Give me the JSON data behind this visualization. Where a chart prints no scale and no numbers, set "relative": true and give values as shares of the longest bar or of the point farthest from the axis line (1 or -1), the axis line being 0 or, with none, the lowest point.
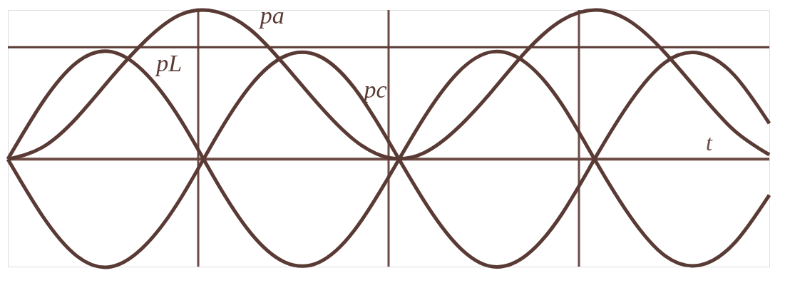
{
  "chart_data": {
    "type": "line",
    "relative": true,
    "xlabel": "t",
    "grid": true,
    "marker": "none",
    "line_style": "solid",
    "categories": [
      null,
      null,
      null,
      null,
      null,
      null,
      null,
      null,
      null,
      null,
      null,
      null,
      null,
      null,
      null,
      null,
      null,
      null,
      null,
      null,
      null,
      null,
      null
    ],
    "series": [
      {
        "name": "pa",
        "color": "#5a3a34",
        "values": [
          0,
          0.08,
          0.28,
          0.55,
          0.8,
          0.97,
          0.99,
          0.87,
          0.63,
          0.36,
          0.13,
          0.01,
          0.04,
          0.21,
          0.46,
          0.73,
          0.93,
          1.0,
          0.92,
          0.71,
          0.44,
          0.19,
          0.03
        ]
      },
      {
        "name": "pL",
        "color": "#5a3a34",
        "values": [
          0,
          0.38,
          0.65,
          0.72,
          0.57,
          0.26,
          -0.14,
          -0.49,
          -0.69,
          -0.69,
          -0.48,
          -0.12,
          0.27,
          0.58,
          0.72,
          0.64,
          0.37,
          -0.02,
          -0.39,
          -0.65,
          -0.71,
          -0.56,
          -0.24
        ]
      },
      {
        "name": "pc",
        "color": "#5a3a34",
        "values": [
          0,
          -0.38,
          -0.65,
          -0.72,
          -0.57,
          -0.26,
          0.14,
          0.49,
          0.69,
          0.69,
          0.48,
          0.12,
          -0.27,
          -0.58,
          -0.72,
          -0.64,
          -0.37,
          0.02,
          0.39,
          0.65,
          0.71,
          0.56,
          0.24
        ]
      }
    ],
    "ref_lines": [
      {
        "axis": "y",
        "value": 0.75,
        "color": "#5a3a34"
      }
    ]
  }
}
